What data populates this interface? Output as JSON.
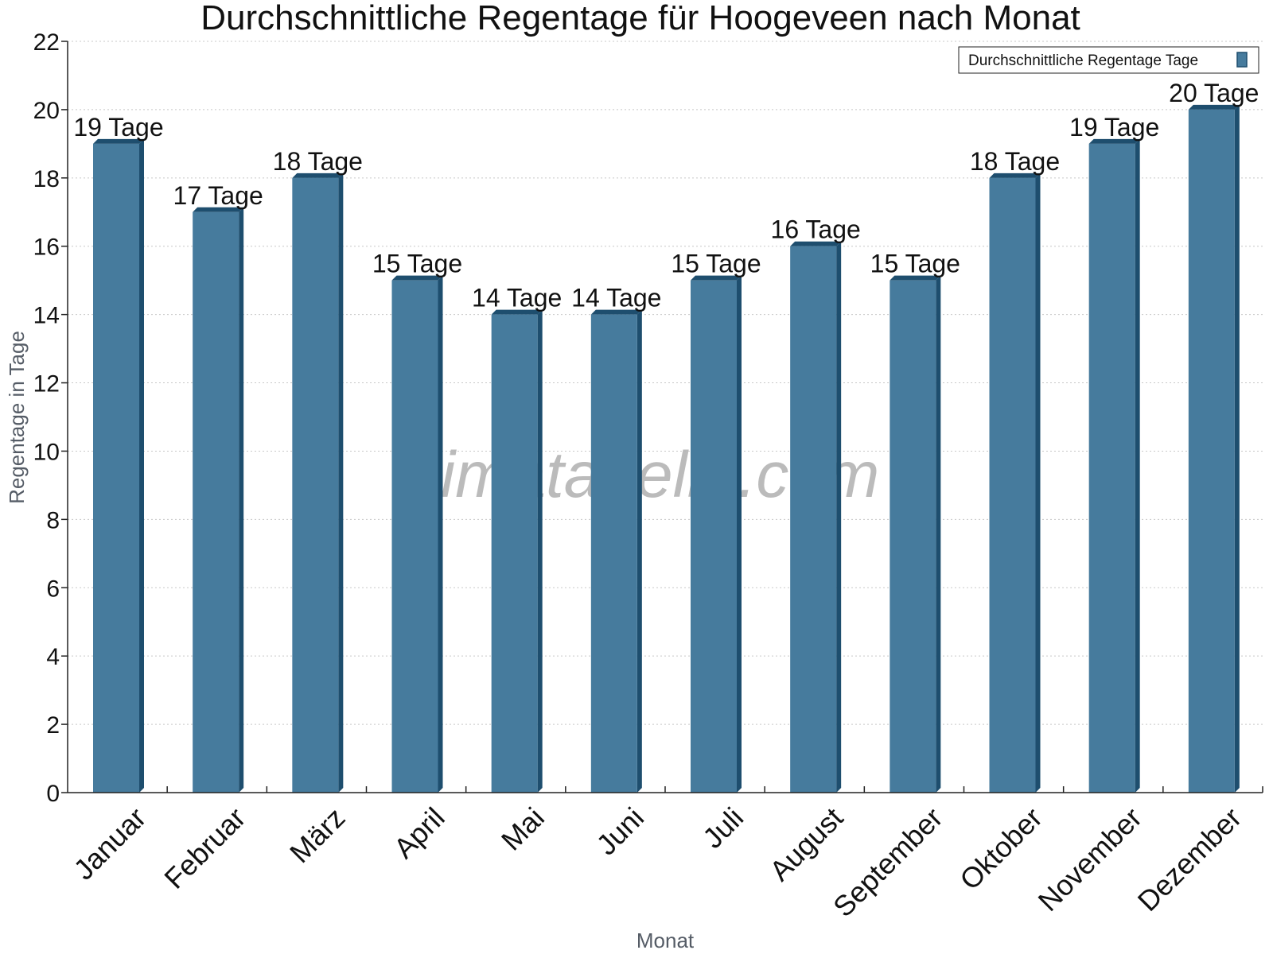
{
  "chart_data": {
    "type": "bar",
    "title": "Durchschnittliche Regentage für Hoogeveen nach Monat",
    "xlabel": "Monat",
    "ylabel": "Regentage in Tage",
    "ylim": [
      0,
      22
    ],
    "yticks": [
      0,
      2,
      4,
      6,
      8,
      10,
      12,
      14,
      16,
      18,
      20,
      22
    ],
    "grid": true,
    "legend_position": "top-right",
    "categories": [
      "Januar",
      "Februar",
      "März",
      "April",
      "Mai",
      "Juni",
      "Juli",
      "August",
      "September",
      "Oktober",
      "November",
      "Dezember"
    ],
    "series": [
      {
        "name": "Durchschnittliche Regentage Tage",
        "values": [
          19,
          17,
          18,
          15,
          14,
          14,
          15,
          16,
          15,
          18,
          19,
          20
        ],
        "data_labels": [
          "19 Tage",
          "17 Tage",
          "18 Tage",
          "15 Tage",
          "14 Tage",
          "14 Tage",
          "15 Tage",
          "16 Tage",
          "15 Tage",
          "18 Tage",
          "19 Tage",
          "20 Tage"
        ],
        "color": "#467b9d",
        "side_color": "#1e4e6e"
      }
    ],
    "watermark": "klimatabelle.com"
  }
}
